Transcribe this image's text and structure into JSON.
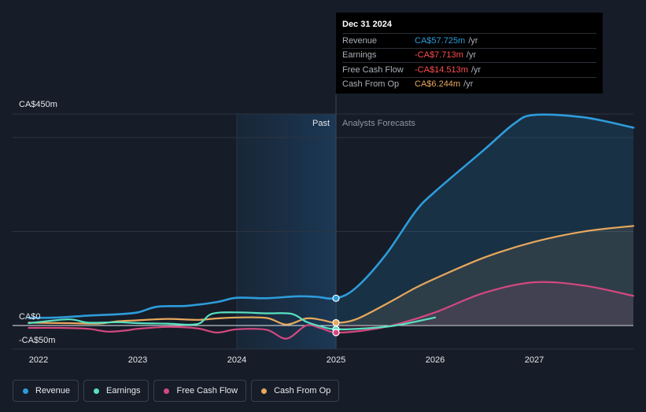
{
  "chart_data": {
    "type": "line",
    "title": "",
    "xlabel": "",
    "ylabel": "",
    "y_axis_labels": [
      {
        "label": "CA$450m",
        "value": 450
      },
      {
        "label": "CA$0",
        "value": 0
      },
      {
        "label": "-CA$50m",
        "value": -50
      }
    ],
    "ylim": [
      -50,
      450
    ],
    "xlim": [
      2021.9,
      2028.0
    ],
    "x_ticks": [
      {
        "label": "2022",
        "value": 2022
      },
      {
        "label": "2023",
        "value": 2023
      },
      {
        "label": "2024",
        "value": 2024
      },
      {
        "label": "2025",
        "value": 2025
      },
      {
        "label": "2026",
        "value": 2026
      },
      {
        "label": "2027",
        "value": 2027
      }
    ],
    "past_label": "Past",
    "forecast_label": "Analysts Forecasts",
    "highlight_range": [
      2024.0,
      2025.0
    ],
    "divider_x": 2025.0,
    "series": [
      {
        "name": "Revenue",
        "color": "#2d9cdb",
        "fill": true,
        "points": [
          [
            2021.9,
            16
          ],
          [
            2022.2,
            17
          ],
          [
            2022.5,
            21
          ],
          [
            2022.8,
            24
          ],
          [
            2023.0,
            28
          ],
          [
            2023.2,
            40
          ],
          [
            2023.5,
            42
          ],
          [
            2023.8,
            50
          ],
          [
            2024.0,
            59
          ],
          [
            2024.3,
            58
          ],
          [
            2024.6,
            62
          ],
          [
            2024.8,
            61
          ],
          [
            2025.0,
            58
          ],
          [
            2025.2,
            80
          ],
          [
            2025.5,
            150
          ],
          [
            2025.8,
            242
          ],
          [
            2026.0,
            285
          ],
          [
            2026.5,
            375
          ],
          [
            2026.8,
            430
          ],
          [
            2027.0,
            448
          ],
          [
            2027.5,
            443
          ],
          [
            2028.0,
            421
          ]
        ]
      },
      {
        "name": "Earnings",
        "color": "#58e1c1",
        "fill": false,
        "points": [
          [
            2021.9,
            5
          ],
          [
            2022.3,
            13
          ],
          [
            2022.5,
            6
          ],
          [
            2022.8,
            7
          ],
          [
            2023.0,
            5
          ],
          [
            2023.3,
            4
          ],
          [
            2023.6,
            3
          ],
          [
            2023.75,
            25
          ],
          [
            2024.0,
            28
          ],
          [
            2024.3,
            26
          ],
          [
            2024.55,
            25
          ],
          [
            2024.7,
            8
          ],
          [
            2024.85,
            -2
          ],
          [
            2025.0,
            -8
          ],
          [
            2025.3,
            -6
          ],
          [
            2025.6,
            0
          ],
          [
            2026.0,
            17
          ]
        ]
      },
      {
        "name": "Free Cash Flow",
        "color": "#d4487f",
        "fill": true,
        "points": [
          [
            2021.9,
            -5
          ],
          [
            2022.2,
            -5
          ],
          [
            2022.5,
            -7
          ],
          [
            2022.7,
            -13
          ],
          [
            2022.9,
            -10
          ],
          [
            2023.0,
            -7
          ],
          [
            2023.3,
            -3
          ],
          [
            2023.6,
            -6
          ],
          [
            2023.8,
            -15
          ],
          [
            2024.0,
            -8
          ],
          [
            2024.3,
            -9
          ],
          [
            2024.5,
            -28
          ],
          [
            2024.7,
            0
          ],
          [
            2024.85,
            -6
          ],
          [
            2025.0,
            -15
          ],
          [
            2025.3,
            -10
          ],
          [
            2025.6,
            2
          ],
          [
            2026.0,
            28
          ],
          [
            2026.5,
            70
          ],
          [
            2027.0,
            92
          ],
          [
            2027.5,
            85
          ],
          [
            2028.0,
            63
          ]
        ]
      },
      {
        "name": "Cash From Op",
        "color": "#e8a85d",
        "fill": true,
        "points": [
          [
            2021.9,
            6
          ],
          [
            2022.3,
            5
          ],
          [
            2022.6,
            4
          ],
          [
            2022.8,
            9
          ],
          [
            2023.0,
            11
          ],
          [
            2023.3,
            14
          ],
          [
            2023.6,
            12
          ],
          [
            2023.8,
            15
          ],
          [
            2024.0,
            17
          ],
          [
            2024.3,
            16
          ],
          [
            2024.5,
            2
          ],
          [
            2024.7,
            15
          ],
          [
            2024.85,
            12
          ],
          [
            2025.0,
            6
          ],
          [
            2025.2,
            13
          ],
          [
            2025.5,
            45
          ],
          [
            2025.8,
            80
          ],
          [
            2026.0,
            100
          ],
          [
            2026.5,
            145
          ],
          [
            2027.0,
            178
          ],
          [
            2027.5,
            200
          ],
          [
            2028.0,
            212
          ]
        ]
      }
    ],
    "markers": [
      {
        "series": "Revenue",
        "x": 2025.0,
        "y": 58
      },
      {
        "series": "Cash From Op",
        "x": 2025.0,
        "y": 6
      },
      {
        "series": "Earnings",
        "x": 2025.0,
        "y": -8
      },
      {
        "series": "Free Cash Flow",
        "x": 2025.0,
        "y": -15
      }
    ]
  },
  "tooltip": {
    "date": "Dec 31 2024",
    "rows": [
      {
        "label": "Revenue",
        "value": "CA$57.725m",
        "unit": "/yr",
        "color": "#2d9cdb"
      },
      {
        "label": "Earnings",
        "value": "-CA$7.713m",
        "unit": "/yr",
        "color": "#ff4d4d"
      },
      {
        "label": "Free Cash Flow",
        "value": "-CA$14.513m",
        "unit": "/yr",
        "color": "#ff4d4d"
      },
      {
        "label": "Cash From Op",
        "value": "CA$6.244m",
        "unit": "/yr",
        "color": "#e8a85d"
      }
    ]
  },
  "legend": [
    {
      "label": "Revenue",
      "color": "#2d9cdb"
    },
    {
      "label": "Earnings",
      "color": "#58e1c1"
    },
    {
      "label": "Free Cash Flow",
      "color": "#d4487f"
    },
    {
      "label": "Cash From Op",
      "color": "#e8a85d"
    }
  ]
}
